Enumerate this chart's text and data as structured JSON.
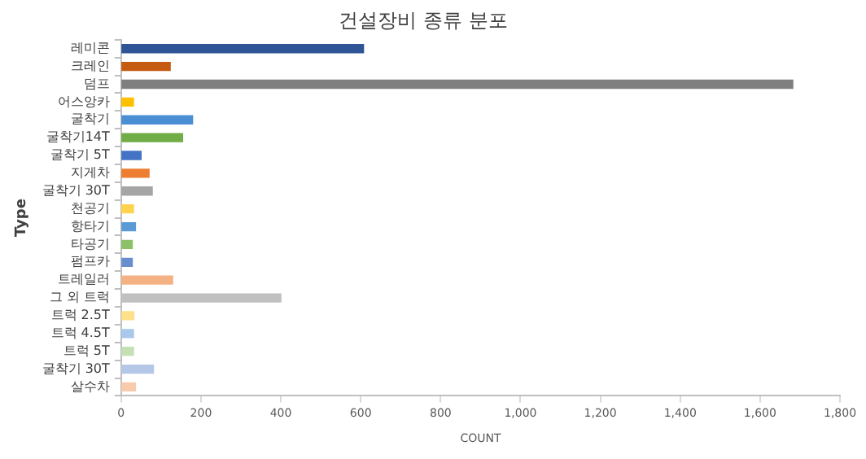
{
  "chart_data": {
    "type": "bar",
    "orientation": "horizontal",
    "title": "건설장비 종류 분포",
    "xlabel": "COUNT",
    "ylabel": "Type",
    "categories": [
      "레미콘",
      "크레인",
      "덤프",
      "어스앙카",
      "굴착기",
      "굴착기14T",
      "굴착기 5T",
      "지게차",
      "굴착기 30T",
      "천공기",
      "항타기",
      "타공기",
      "펌프카",
      "트레일러",
      "그 외 트럭",
      "트럭 2.5T",
      "트럭 4.5T",
      "트럭 5T",
      "굴착기 30T",
      "살수차"
    ],
    "values": [
      607,
      123,
      1682,
      31,
      179,
      154,
      50,
      70,
      78,
      31,
      36,
      28,
      28,
      129,
      400,
      32,
      31,
      31,
      81,
      36
    ],
    "colors": [
      "#2f5597",
      "#c55a11",
      "#7f7f7f",
      "#ffc000",
      "#4a8fd4",
      "#70ad47",
      "#4472c4",
      "#ed7d31",
      "#a5a5a5",
      "#ffd34d",
      "#5b9bd5",
      "#8cc168",
      "#698ed0",
      "#f4b183",
      "#c0c0c0",
      "#ffe08a",
      "#a9c8ec",
      "#c5e0b4",
      "#b4c7e7",
      "#f8cbad"
    ],
    "xlim": [
      0,
      1800
    ],
    "xticks": [
      0,
      200,
      400,
      600,
      800,
      {
        "value": 1000,
        "label": "1,000"
      },
      {
        "value": 1200,
        "label": "1,200"
      },
      {
        "value": 1400,
        "label": "1,400"
      },
      {
        "value": 1600,
        "label": "1,600"
      },
      {
        "value": 1800,
        "label": "1,800"
      }
    ],
    "legend": false
  }
}
